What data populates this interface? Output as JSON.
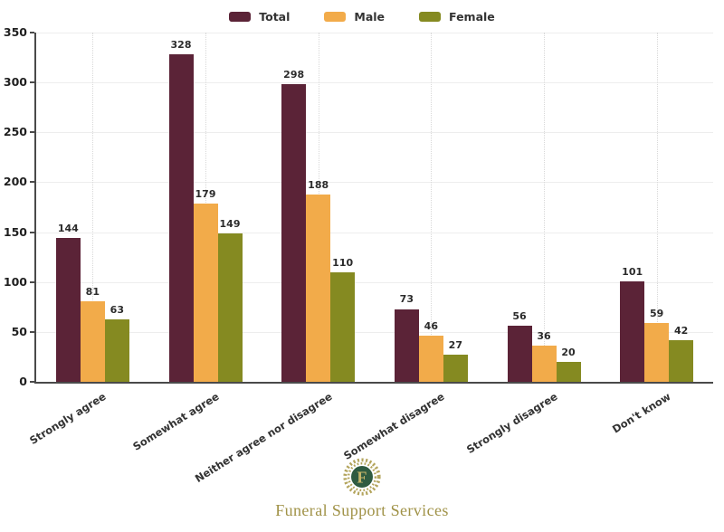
{
  "chart_data": {
    "type": "bar",
    "title": "",
    "xlabel": "",
    "ylabel": "",
    "categories": [
      "Strongly agree",
      "Somewhat agree",
      "Neither agree nor disagree",
      "Somewhat disagree",
      "Strongly disagree",
      "Don't know"
    ],
    "series": [
      {
        "name": "Total",
        "color": "#5b2337",
        "values": [
          144,
          328,
          298,
          73,
          56,
          101
        ]
      },
      {
        "name": "Male",
        "color": "#f2ab4a",
        "values": [
          81,
          179,
          188,
          46,
          36,
          59
        ]
      },
      {
        "name": "Female",
        "color": "#858a21",
        "values": [
          63,
          149,
          110,
          27,
          20,
          42
        ]
      }
    ],
    "ylim": [
      0,
      350
    ],
    "yticks": [
      0,
      50,
      100,
      150,
      200,
      250,
      300,
      350
    ],
    "grid": true,
    "legend_position": "top",
    "bar_value_labels": true,
    "x_label_rotation_deg": 32
  },
  "colors": {
    "axis": "#4a4a4a",
    "gridline": "#ededed",
    "dotted_gridline": "#d8d8d8",
    "brand_gold": "#a09247",
    "logo_green": "#2f5b41",
    "logo_letter_gold": "#c4b469"
  },
  "footer": {
    "logo_letter": "F",
    "brand": "Funeral Support Services"
  }
}
